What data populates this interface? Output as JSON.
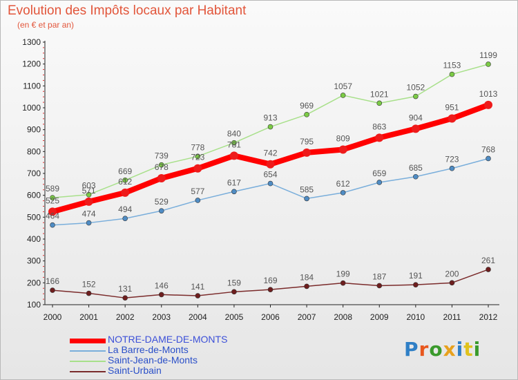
{
  "title": "Evolution des Impôts locaux par Habitant",
  "subtitle": "(en € et par an)",
  "brand": "Proxiti",
  "colors": {
    "brand_letters": [
      "#2f7fc6",
      "#e8571d",
      "#3a9a2c",
      "#e8a11d",
      "#2f7fc6",
      "#e0c21d",
      "#3a9a2c"
    ]
  },
  "chart_data": {
    "type": "line",
    "x": [
      "2000",
      "2001",
      "2002",
      "2003",
      "2004",
      "2005",
      "2006",
      "2007",
      "2008",
      "2009",
      "2010",
      "2011",
      "2012"
    ],
    "ylim": [
      100,
      1300
    ],
    "yticks": [
      100,
      200,
      300,
      400,
      500,
      600,
      700,
      800,
      900,
      1000,
      1100,
      1200,
      1300
    ],
    "grid": false,
    "legend_position": "bottom-left",
    "series": [
      {
        "name": "NOTRE-DAME-DE-MONTS",
        "color": "#ff0000",
        "marker": "#ee1b1b",
        "width": 8,
        "radius": 6,
        "labelColor": "#222222",
        "values": [
          525,
          571,
          612,
          678,
          723,
          781,
          742,
          795,
          809,
          863,
          904,
          951,
          1013
        ]
      },
      {
        "name": "La Barre-de-Monts",
        "color": "#79aedb",
        "marker": "#4f8cc4",
        "width": 1.5,
        "radius": 3.5,
        "labelColor": "#555555",
        "values": [
          464,
          474,
          494,
          529,
          577,
          617,
          654,
          585,
          612,
          659,
          685,
          723,
          768
        ]
      },
      {
        "name": "Saint-Jean-de-Monts",
        "color": "#a8e08a",
        "marker": "#7bcb45",
        "width": 1.5,
        "radius": 3.5,
        "labelColor": "#555555",
        "values": [
          589,
          603,
          669,
          739,
          778,
          840,
          913,
          969,
          1057,
          1021,
          1052,
          1153,
          1199
        ]
      },
      {
        "name": "Saint-Urbain",
        "color": "#7a2a2a",
        "marker": "#6e1e1e",
        "width": 1.5,
        "radius": 3.5,
        "labelColor": "#555555",
        "values": [
          166,
          152,
          131,
          146,
          141,
          159,
          169,
          184,
          199,
          187,
          191,
          200,
          261
        ]
      }
    ]
  }
}
